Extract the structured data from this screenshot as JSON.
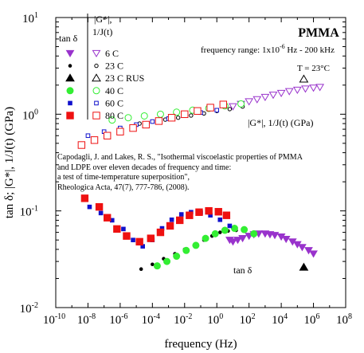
{
  "chart_data": {
    "type": "scatter",
    "title": "PMMA",
    "xlabel": "frequency (Hz)",
    "ylabel": "tan δ; |G*|, 1/J(t) (GPa)",
    "x_scale": "log",
    "y_scale": "log",
    "xlim": [
      1e-10,
      100000000.0
    ],
    "ylim": [
      0.01,
      10
    ],
    "x_ticks": [
      {
        "v": -10,
        "base": "10",
        "exp": "-10"
      },
      {
        "v": -8,
        "base": "10",
        "exp": "-8"
      },
      {
        "v": -6,
        "base": "10",
        "exp": "-6"
      },
      {
        "v": -4,
        "base": "10",
        "exp": "-4"
      },
      {
        "v": -2,
        "base": "10",
        "exp": "-2"
      },
      {
        "v": 0,
        "base": "10",
        "exp": "0"
      },
      {
        "v": 2,
        "base": "10",
        "exp": "2"
      },
      {
        "v": 4,
        "base": "10",
        "exp": "4"
      },
      {
        "v": 6,
        "base": "10",
        "exp": "6"
      },
      {
        "v": 8,
        "base": "10",
        "exp": "8"
      }
    ],
    "y_ticks": [
      {
        "v": 1,
        "base": "10",
        "exp": "1"
      },
      {
        "v": 0,
        "base": "10",
        "exp": "0"
      },
      {
        "v": -1,
        "base": "10",
        "exp": "-1"
      },
      {
        "v": -2,
        "base": "10",
        "exp": "-2"
      }
    ],
    "legend": {
      "placement": "top-left",
      "col_tan": "tan δ",
      "col_g_line1": "|G*|,",
      "col_g_line2": "1/J(t)",
      "entries": [
        {
          "label": "6 C",
          "series": "6C"
        },
        {
          "label": "23 C",
          "series": "23C"
        },
        {
          "label": "23 C RUS",
          "series": "23CRUS"
        },
        {
          "label": "40 C",
          "series": "40C"
        },
        {
          "label": "60 C",
          "series": "60C"
        },
        {
          "label": "80 C",
          "series": "80C"
        }
      ]
    },
    "annotations": {
      "freq_range_prefix": "frequency range: 1x10",
      "freq_range_exp": "-6",
      "freq_range_suffix": " Hz - 200 kHz",
      "temp_label": "T = 23°C",
      "g_curve_label": "|G*|, 1/J(t) (GPa)",
      "tan_curve_label": "tan δ",
      "citation_lines": [
        "Capodagli, J. and Lakes, R. S., \"Isothermal viscoelastic properties of PMMA",
        "and LDPE over eleven decades of frequency and time:",
        "a test of time-temperature superposition\",",
        "Rheologica Acta, 47(7), 777-786, (2008)."
      ]
    },
    "series": [
      {
        "id": "6C",
        "color": "#9933cc",
        "tan": [
          [
            0.8,
            0.05
          ],
          [
            1.0,
            0.048
          ],
          [
            1.3,
            0.05
          ],
          [
            1.6,
            0.052
          ],
          [
            2.0,
            0.055
          ],
          [
            2.3,
            0.057
          ],
          [
            2.6,
            0.058
          ],
          [
            3.0,
            0.058
          ],
          [
            3.3,
            0.057
          ],
          [
            3.6,
            0.056
          ],
          [
            4.0,
            0.054
          ],
          [
            4.3,
            0.051
          ],
          [
            4.7,
            0.048
          ],
          [
            5.0,
            0.045
          ],
          [
            5.3,
            0.042
          ],
          [
            5.7,
            0.039
          ],
          [
            6.0,
            0.036
          ]
        ],
        "g": [
          [
            1.0,
            1.2
          ],
          [
            1.5,
            1.27
          ],
          [
            2.0,
            1.35
          ],
          [
            2.5,
            1.42
          ],
          [
            3.0,
            1.5
          ],
          [
            3.5,
            1.58
          ],
          [
            4.0,
            1.65
          ],
          [
            4.5,
            1.72
          ],
          [
            5.0,
            1.78
          ],
          [
            5.5,
            1.83
          ],
          [
            6.0,
            1.87
          ],
          [
            6.4,
            1.9
          ]
        ]
      },
      {
        "id": "23C",
        "color": "#000000",
        "tan": [
          [
            -4.7,
            0.025
          ],
          [
            -4.0,
            0.028
          ],
          [
            -3.3,
            0.032
          ],
          [
            -2.6,
            0.036
          ],
          [
            -2.0,
            0.04
          ],
          [
            -1.4,
            0.044
          ],
          [
            -0.8,
            0.05
          ],
          [
            -0.3,
            0.055
          ],
          [
            0.2,
            0.06
          ],
          [
            0.7,
            0.062
          ],
          [
            1.2,
            0.063
          ],
          [
            1.7,
            0.062
          ]
        ],
        "g": [
          [
            -4.8,
            0.8
          ],
          [
            -4.0,
            0.84
          ],
          [
            -3.2,
            0.88
          ],
          [
            -2.4,
            0.92
          ],
          [
            -1.6,
            0.97
          ],
          [
            -0.8,
            1.02
          ],
          [
            0.0,
            1.08
          ],
          [
            0.8,
            1.13
          ],
          [
            1.6,
            1.2
          ]
        ]
      },
      {
        "id": "23CRUS",
        "color": "#000000",
        "tan": [
          [
            5.4,
            0.026
          ]
        ],
        "g": [
          [
            5.4,
            2.3
          ]
        ]
      },
      {
        "id": "40C",
        "color": "#33ee33",
        "tan": [
          [
            -3.7,
            0.027
          ],
          [
            -3.1,
            0.03
          ],
          [
            -2.5,
            0.034
          ],
          [
            -1.9,
            0.039
          ],
          [
            -1.3,
            0.044
          ],
          [
            -0.7,
            0.052
          ],
          [
            -0.1,
            0.058
          ],
          [
            0.5,
            0.063
          ],
          [
            1.1,
            0.066
          ],
          [
            1.7,
            0.064
          ],
          [
            2.3,
            0.058
          ]
        ],
        "g": [
          [
            -6.5,
            0.87
          ],
          [
            -5.5,
            0.92
          ],
          [
            -4.5,
            0.96
          ],
          [
            -3.5,
            1.0
          ],
          [
            -2.5,
            1.05
          ],
          [
            -1.5,
            1.1
          ],
          [
            -0.5,
            1.15
          ],
          [
            0.5,
            1.22
          ],
          [
            1.5,
            1.28
          ]
        ]
      },
      {
        "id": "60C",
        "color": "#1111cc",
        "tan": [
          [
            -7.9,
            0.11
          ],
          [
            -7.2,
            0.095
          ],
          [
            -6.5,
            0.08
          ],
          [
            -5.8,
            0.065
          ],
          [
            -5.2,
            0.05
          ],
          [
            -4.6,
            0.043
          ],
          [
            -4.0,
            0.05
          ],
          [
            -3.4,
            0.066
          ],
          [
            -2.8,
            0.081
          ],
          [
            -2.2,
            0.092
          ],
          [
            -1.6,
            0.097
          ],
          [
            -1.0,
            0.096
          ],
          [
            -0.4,
            0.09
          ],
          [
            0.2,
            0.081
          ],
          [
            0.8,
            0.07
          ]
        ],
        "g": [
          [
            -8.0,
            0.6
          ],
          [
            -7.0,
            0.66
          ],
          [
            -6.0,
            0.72
          ],
          [
            -5.0,
            0.78
          ],
          [
            -4.0,
            0.84
          ],
          [
            -3.0,
            0.9
          ],
          [
            -2.0,
            0.97
          ],
          [
            -1.0,
            1.04
          ],
          [
            0.0,
            1.1
          ]
        ]
      },
      {
        "id": "80C",
        "color": "#ee1111",
        "tan": [
          [
            -8.2,
            0.135
          ],
          [
            -7.3,
            0.11
          ],
          [
            -6.8,
            0.085
          ],
          [
            -6.2,
            0.065
          ],
          [
            -5.6,
            0.055
          ],
          [
            -4.8,
            0.048
          ],
          [
            -4.1,
            0.052
          ],
          [
            -3.5,
            0.06
          ],
          [
            -2.9,
            0.07
          ],
          [
            -2.3,
            0.08
          ],
          [
            -1.7,
            0.09
          ],
          [
            -1.1,
            0.097
          ],
          [
            -0.5,
            0.1
          ],
          [
            0.1,
            0.098
          ],
          [
            0.6,
            0.09
          ]
        ],
        "g": [
          [
            -8.4,
            0.48
          ],
          [
            -7.6,
            0.54
          ],
          [
            -6.8,
            0.6
          ],
          [
            -6.0,
            0.66
          ],
          [
            -5.2,
            0.72
          ],
          [
            -4.4,
            0.78
          ],
          [
            -3.6,
            0.85
          ],
          [
            -2.8,
            0.92
          ],
          [
            -2.0,
            1.0
          ],
          [
            -1.2,
            1.08
          ],
          [
            -0.4,
            1.17
          ],
          [
            0.4,
            1.26
          ]
        ]
      }
    ]
  }
}
